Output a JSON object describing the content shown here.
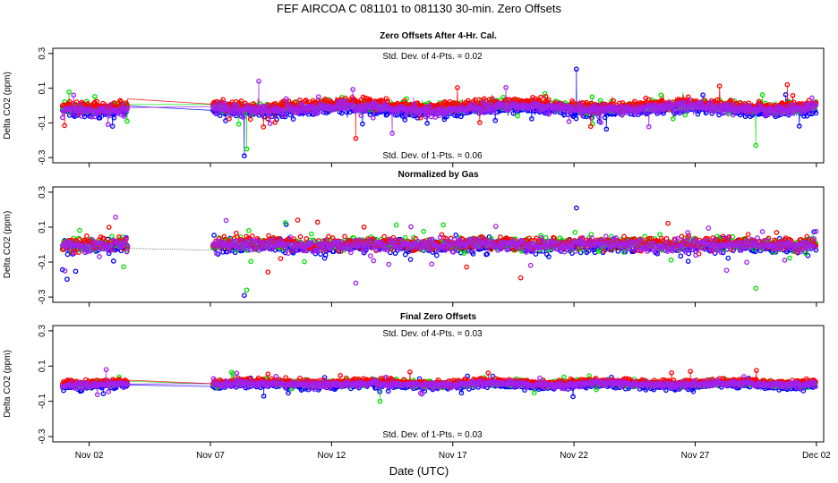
{
  "figure": {
    "title": "FEF   AIRCOA C   081101 to 081130   30-min. Zero Offsets",
    "xlabel": "Date (UTC)"
  },
  "chart_data": {
    "type": "scatter",
    "x_range_days": [
      31.5,
      63.3
    ],
    "x_ticks": [
      {
        "day": 33,
        "label": "Nov 02"
      },
      {
        "day": 38,
        "label": "Nov 07"
      },
      {
        "day": 43,
        "label": "Nov 12"
      },
      {
        "day": 48,
        "label": "Nov 17"
      },
      {
        "day": 53,
        "label": "Nov 22"
      },
      {
        "day": 58,
        "label": "Nov 27"
      },
      {
        "day": 63,
        "label": "Dec 02"
      }
    ],
    "gas_colors": {
      "gas1": "#0000ff",
      "gas2": "#00e000",
      "gas3": "#ff0000",
      "gas4": "#a020f0"
    },
    "data_window": {
      "start_day": 31.9,
      "gap_start_day": 34.6,
      "gap_end_day": 38.1,
      "end_day": 63.0
    },
    "panels": [
      {
        "title": "Zero Offsets After 4-Hr. Cal.",
        "ylabel": "Delta CO2 (ppm)",
        "ylim": [
          -0.33,
          0.33
        ],
        "y_ticks": [
          "0.3",
          "0.1",
          "-0.1",
          "-0.3"
        ],
        "annotation_top": "Std. Dev. of 4-Pts. =  0.02",
        "annotation_bottom": "Std. Dev. of 1-Pts. =  0.06",
        "spread": 0.05,
        "style": "lines",
        "spikes": [
          {
            "day": 39.4,
            "value": -0.29
          },
          {
            "day": 39.5,
            "value": -0.25
          },
          {
            "day": 44.0,
            "value": -0.19
          },
          {
            "day": 45.5,
            "value": -0.16
          },
          {
            "day": 53.1,
            "value": 0.21
          },
          {
            "day": 60.5,
            "value": -0.23
          },
          {
            "day": 61.8,
            "value": 0.12
          },
          {
            "day": 40.0,
            "value": 0.14
          }
        ]
      },
      {
        "title": "Normalized by Gas",
        "ylabel": "Delta CO2 (ppm)",
        "ylim": [
          -0.33,
          0.33
        ],
        "y_ticks": [
          "0.3",
          "0.1",
          "-0.1",
          "-0.3"
        ],
        "annotation_top": "",
        "annotation_bottom": "",
        "spread": 0.06,
        "style": "normalized",
        "spikes": [
          {
            "day": 39.4,
            "value": -0.29
          },
          {
            "day": 39.5,
            "value": -0.26
          },
          {
            "day": 41.6,
            "value": 0.14
          },
          {
            "day": 44.0,
            "value": -0.22
          },
          {
            "day": 53.1,
            "value": 0.21
          },
          {
            "day": 60.5,
            "value": -0.25
          },
          {
            "day": 50.8,
            "value": -0.19
          },
          {
            "day": 32.0,
            "value": -0.15
          }
        ]
      },
      {
        "title": "Final Zero Offsets",
        "ylabel": "Delta CO2 (ppm)",
        "ylim": [
          -0.33,
          0.33
        ],
        "y_ticks": [
          "0.3",
          "0.1",
          "-0.1",
          "-0.3"
        ],
        "annotation_top": "Std. Dev. of 4-Pts. =  0.03",
        "annotation_bottom": "Std. Dev. of 1-Pts. =  0.03",
        "spread": 0.028,
        "style": "lines",
        "spikes": [
          {
            "day": 40.2,
            "value": -0.07
          },
          {
            "day": 45.0,
            "value": -0.1
          },
          {
            "day": 57.8,
            "value": 0.07
          },
          {
            "day": 33.7,
            "value": 0.08
          }
        ]
      }
    ]
  }
}
